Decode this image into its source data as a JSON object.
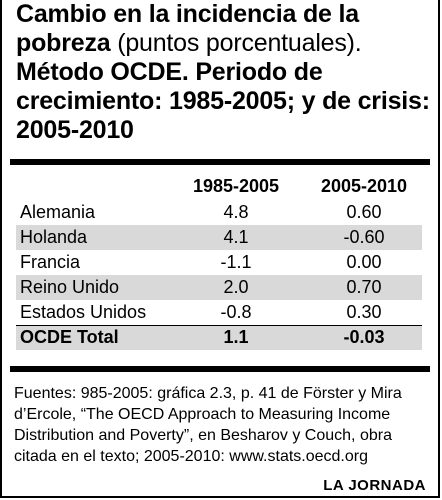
{
  "title": {
    "lead_bold": "Cambio en la incidencia de la pobreza",
    "lead_regular": " (puntos porcentuales).",
    "rest_bold": "Método OCDE. Periodo de crecimiento: 1985-2005; y de crisis: 2005-2010"
  },
  "table": {
    "columns": [
      "",
      "1985-2005",
      "2005-2010"
    ],
    "rows": [
      {
        "country": "Alemania",
        "p1": "4.8",
        "p2": "0.60"
      },
      {
        "country": "Holanda",
        "p1": "4.1",
        "p2": "-0.60"
      },
      {
        "country": "Francia",
        "p1": "-1.1",
        "p2": "0.00"
      },
      {
        "country": "Reino Unido",
        "p1": "2.0",
        "p2": "0.70"
      },
      {
        "country": "Estados Unidos",
        "p1": "-0.8",
        "p2": "0.30"
      },
      {
        "country": "OCDE Total",
        "p1": "1.1",
        "p2": "-0.03"
      }
    ]
  },
  "source": "Fuentes: 985-2005: gráfica 2.3, p. 41 de Förster y Mira d’Ercole, “The OECD Approach to Measuring Income Distribution and Poverty”, en Besharov y Couch, obra citada en el texto; 2005-2010: www.stats.oecd.org",
  "credit": "LA JORNADA"
}
